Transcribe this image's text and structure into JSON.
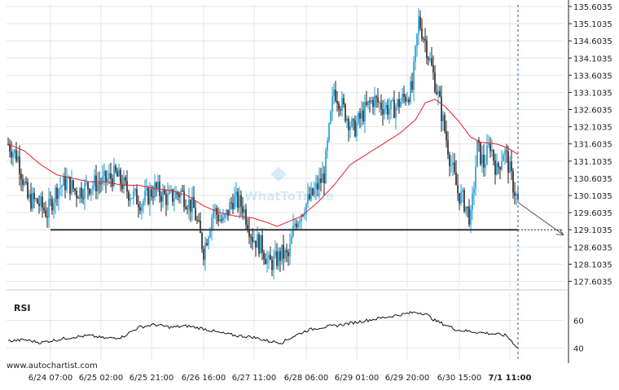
{
  "chart_data": [
    {
      "type": "candlestick",
      "y_ticks": [
        "135.6035",
        "135.1035",
        "134.6035",
        "134.1035",
        "133.6035",
        "133.1035",
        "132.6035",
        "132.1035",
        "131.6035",
        "131.1035",
        "130.6035",
        "130.1035",
        "129.6035",
        "129.1035",
        "128.6035",
        "128.1035",
        "127.6035"
      ],
      "ylim": [
        127.45,
        135.65
      ],
      "x_ticks": [
        "6/24 07:00",
        "6/25 02:00",
        "6/25 21:00",
        "6/26 16:00",
        "6/27 11:00",
        "6/28 06:00",
        "6/29 01:00",
        "6/29 20:00",
        "6/30 15:00",
        "7/1 11:00"
      ],
      "support_level": 129.1035,
      "price_path_anchors": [
        [
          0,
          131.6
        ],
        [
          6,
          131.2
        ],
        [
          12,
          130.0
        ],
        [
          18,
          129.9
        ],
        [
          24,
          129.6
        ],
        [
          30,
          130.3
        ],
        [
          36,
          130.5
        ],
        [
          42,
          130.2
        ],
        [
          50,
          130.4
        ],
        [
          58,
          130.5
        ],
        [
          66,
          130.7
        ],
        [
          74,
          130.2
        ],
        [
          82,
          129.9
        ],
        [
          90,
          130.3
        ],
        [
          98,
          130.0
        ],
        [
          106,
          130.2
        ],
        [
          114,
          129.7
        ],
        [
          120,
          128.5
        ],
        [
          126,
          129.7
        ],
        [
          132,
          129.3
        ],
        [
          138,
          130.0
        ],
        [
          144,
          129.8
        ],
        [
          150,
          128.9
        ],
        [
          156,
          128.6
        ],
        [
          160,
          128.1
        ],
        [
          164,
          128.2
        ],
        [
          168,
          128.4
        ],
        [
          172,
          128.3
        ],
        [
          176,
          129.3
        ],
        [
          182,
          129.8
        ],
        [
          188,
          130.2
        ],
        [
          194,
          130.7
        ],
        [
          200,
          133.2
        ],
        [
          206,
          132.6
        ],
        [
          212,
          132.0
        ],
        [
          218,
          132.5
        ],
        [
          224,
          132.9
        ],
        [
          230,
          132.7
        ],
        [
          236,
          132.6
        ],
        [
          240,
          132.8
        ],
        [
          244,
          133.0
        ],
        [
          248,
          133.2
        ],
        [
          252,
          135.2
        ],
        [
          256,
          134.6
        ],
        [
          260,
          133.8
        ],
        [
          264,
          133.0
        ],
        [
          268,
          132.0
        ],
        [
          272,
          131.0
        ],
        [
          276,
          130.2
        ],
        [
          280,
          129.9
        ],
        [
          284,
          129.4
        ],
        [
          288,
          131.5
        ],
        [
          292,
          131.0
        ],
        [
          296,
          131.6
        ],
        [
          300,
          130.8
        ],
        [
          304,
          131.4
        ],
        [
          306,
          131.2
        ],
        [
          310,
          130.4
        ],
        [
          313,
          129.9
        ]
      ],
      "ma_anchors": [
        [
          0,
          131.6
        ],
        [
          10,
          131.4
        ],
        [
          20,
          131.0
        ],
        [
          30,
          130.7
        ],
        [
          40,
          130.6
        ],
        [
          50,
          130.5
        ],
        [
          60,
          130.5
        ],
        [
          70,
          130.4
        ],
        [
          80,
          130.4
        ],
        [
          90,
          130.3
        ],
        [
          100,
          130.25
        ],
        [
          110,
          130.1
        ],
        [
          120,
          129.8
        ],
        [
          130,
          129.6
        ],
        [
          140,
          129.5
        ],
        [
          150,
          129.45
        ],
        [
          160,
          129.3
        ],
        [
          165,
          129.2
        ],
        [
          170,
          129.3
        ],
        [
          180,
          129.5
        ],
        [
          190,
          129.9
        ],
        [
          200,
          130.4
        ],
        [
          210,
          131.0
        ],
        [
          220,
          131.3
        ],
        [
          230,
          131.6
        ],
        [
          240,
          131.9
        ],
        [
          250,
          132.3
        ],
        [
          256,
          132.8
        ],
        [
          262,
          132.9
        ],
        [
          268,
          132.7
        ],
        [
          276,
          132.3
        ],
        [
          284,
          131.8
        ],
        [
          290,
          131.65
        ],
        [
          300,
          131.6
        ],
        [
          306,
          131.5
        ],
        [
          313,
          131.3
        ]
      ],
      "forecast_end": 128.95
    },
    {
      "type": "line",
      "title": "RSI",
      "y_ticks": [
        "60",
        "40"
      ],
      "ylim": [
        35,
        68
      ],
      "rsi_anchors": [
        [
          0,
          45
        ],
        [
          10,
          46
        ],
        [
          20,
          44
        ],
        [
          30,
          46
        ],
        [
          40,
          48
        ],
        [
          50,
          49
        ],
        [
          60,
          47
        ],
        [
          70,
          48
        ],
        [
          80,
          55
        ],
        [
          90,
          57
        ],
        [
          100,
          55
        ],
        [
          110,
          56
        ],
        [
          120,
          54
        ],
        [
          130,
          51
        ],
        [
          140,
          49
        ],
        [
          150,
          48
        ],
        [
          160,
          45
        ],
        [
          168,
          44
        ],
        [
          176,
          49
        ],
        [
          184,
          53
        ],
        [
          192,
          55
        ],
        [
          200,
          56
        ],
        [
          210,
          58
        ],
        [
          220,
          60
        ],
        [
          230,
          62
        ],
        [
          240,
          64
        ],
        [
          250,
          66
        ],
        [
          256,
          65
        ],
        [
          262,
          60
        ],
        [
          268,
          57
        ],
        [
          276,
          53
        ],
        [
          284,
          52
        ],
        [
          292,
          51
        ],
        [
          300,
          50
        ],
        [
          306,
          49
        ],
        [
          313,
          40
        ]
      ]
    }
  ],
  "footer": {
    "site": "www.autochartist.com"
  },
  "colors": {
    "bull": "#1e9ad6",
    "bear": "#222222",
    "ma": "#e41e26",
    "level": "#333333",
    "grid": "#e6e6e6"
  }
}
